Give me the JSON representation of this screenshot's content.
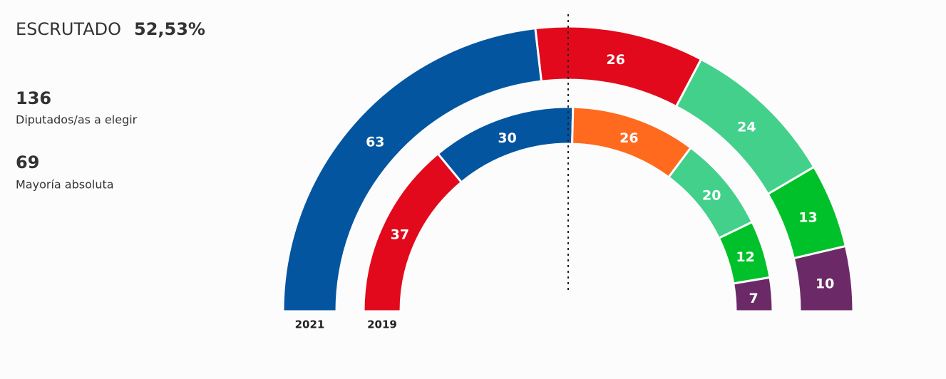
{
  "chart_data": {
    "type": "half-donut",
    "summary": {
      "scrutinized_label": "ESCRUTADO",
      "scrutinized_value": "52,53%",
      "seats": 136,
      "seats_label": "Diputados/as a elegir",
      "majority": 69,
      "majority_label": "Mayoría absoluta"
    },
    "rings": [
      {
        "name": "2021",
        "values": [
          63,
          26,
          24,
          13,
          10
        ],
        "colors": [
          "#0355a0",
          "#e1091b",
          "#43d08b",
          "#00c12a",
          "#6b2a67"
        ]
      },
      {
        "name": "2019",
        "values": [
          37,
          30,
          26,
          20,
          12,
          7
        ],
        "colors": [
          "#e1091b",
          "#0355a0",
          "#ff6a1e",
          "#43d08b",
          "#00c12a",
          "#6b2a67"
        ]
      }
    ]
  }
}
